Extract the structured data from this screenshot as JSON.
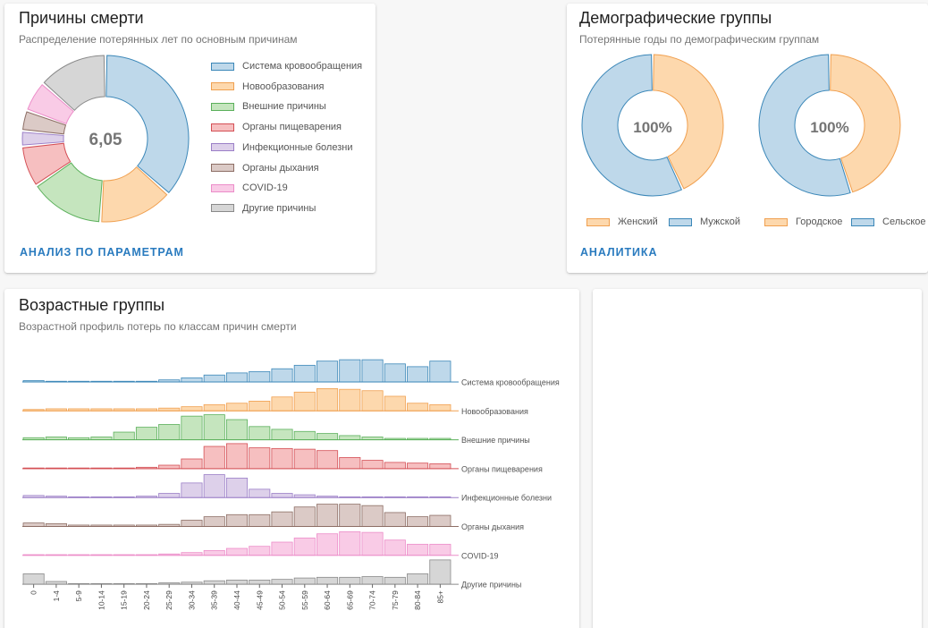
{
  "colors": {
    "fills": [
      "#bed8ea",
      "#fdd8ad",
      "#c5e5be",
      "#f6bfc0",
      "#ddd0ea",
      "#dbcac6",
      "#f9cbe6",
      "#d6d6d6"
    ],
    "strokes": [
      "#3b87b8",
      "#f0a050",
      "#5bb05b",
      "#d44f55",
      "#9b7fc7",
      "#8d6e65",
      "#ec8dc9",
      "#8a8a8a"
    ]
  },
  "causes": {
    "title": "Причины смерти",
    "subtitle": "Распределение потерянных лет по основным причинам",
    "center_value": "6,05",
    "link": "Анализ по параметрам",
    "legend": [
      "Система кровообращения",
      "Новообразования",
      "Внешние причины",
      "Органы пищеварения",
      "Инфекционные болезни",
      "Органы дыхания",
      "COVID-19",
      "Другие причины"
    ]
  },
  "demographics": {
    "title": "Демографические группы",
    "subtitle": "Потерянные годы по демографическим группам",
    "link": "Аналитика",
    "donut1": {
      "center": "100%",
      "legend": [
        "Женский",
        "Мужской"
      ]
    },
    "donut2": {
      "center": "100%",
      "legend": [
        "Городское",
        "Сельское"
      ]
    }
  },
  "ages": {
    "title": "Возрастные группы",
    "subtitle": "Возрастной профиль потерь по классам причин смерти"
  },
  "chart_data": [
    {
      "type": "pie",
      "title": "Причины смерти",
      "center_label": "6,05",
      "labels": [
        "Система кровообращения",
        "Новообразования",
        "Внешние причины",
        "Органы пищеварения",
        "Инфекционные болезни",
        "Органы дыхания",
        "COVID-19",
        "Другие причины"
      ],
      "values": [
        36.5,
        14.5,
        14.5,
        8.0,
        3.0,
        4.0,
        6.0,
        13.5
      ]
    },
    {
      "type": "pie",
      "labels": [
        "Женский",
        "Мужской"
      ],
      "values": [
        43,
        57
      ]
    },
    {
      "type": "pie",
      "labels": [
        "Городское",
        "Сельское"
      ],
      "values": [
        45,
        55
      ]
    },
    {
      "type": "bar",
      "title": "Возрастные группы",
      "categories": [
        "0",
        "1-4",
        "5-9",
        "10-14",
        "15-19",
        "20-24",
        "25-29",
        "30-34",
        "35-39",
        "40-44",
        "45-49",
        "50-54",
        "55-59",
        "60-64",
        "65-69",
        "70-74",
        "75-79",
        "80-84",
        "85+"
      ],
      "series": [
        {
          "name": "Система кровообращения",
          "values": [
            2,
            1,
            1,
            1,
            1,
            1,
            3,
            6,
            10,
            13,
            15,
            19,
            24,
            30,
            32,
            32,
            26,
            22,
            30
          ]
        },
        {
          "name": "Новообразования",
          "values": [
            2,
            3,
            3,
            3,
            3,
            3,
            4,
            6,
            9,
            11,
            14,
            20,
            27,
            32,
            31,
            29,
            21,
            11,
            9
          ]
        },
        {
          "name": "Внешние причины",
          "values": [
            3,
            4,
            3,
            4,
            11,
            18,
            22,
            34,
            36,
            29,
            19,
            15,
            12,
            9,
            6,
            4,
            2,
            2,
            2
          ]
        },
        {
          "name": "Органы пищеварения",
          "values": [
            1,
            1,
            1,
            1,
            1,
            2,
            5,
            14,
            32,
            36,
            30,
            29,
            28,
            26,
            16,
            12,
            9,
            8,
            7
          ]
        },
        {
          "name": "Инфекционные болезни",
          "values": [
            3,
            2,
            1,
            1,
            1,
            2,
            6,
            21,
            33,
            28,
            12,
            6,
            4,
            2,
            1,
            1,
            1,
            1,
            1
          ]
        },
        {
          "name": "Органы дыхания",
          "values": [
            5,
            4,
            2,
            2,
            2,
            2,
            3,
            9,
            14,
            17,
            17,
            21,
            28,
            32,
            32,
            30,
            20,
            14,
            16
          ]
        },
        {
          "name": "COVID-19",
          "values": [
            1,
            1,
            1,
            1,
            1,
            1,
            2,
            4,
            7,
            10,
            13,
            19,
            25,
            31,
            34,
            33,
            22,
            16,
            16
          ]
        },
        {
          "name": "Другие причины",
          "values": [
            15,
            4,
            1,
            1,
            1,
            1,
            2,
            3,
            5,
            6,
            6,
            7,
            9,
            10,
            10,
            11,
            10,
            15,
            35
          ]
        }
      ]
    }
  ]
}
